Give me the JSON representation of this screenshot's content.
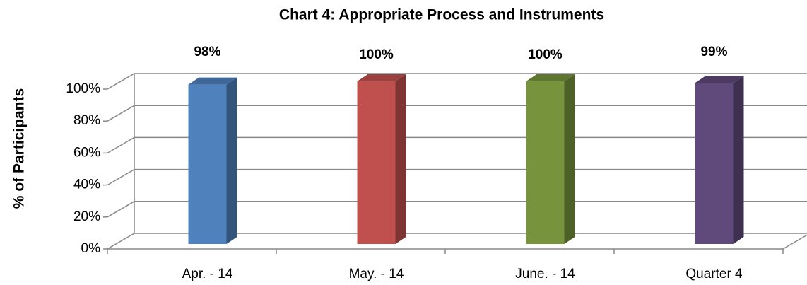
{
  "chart_data": {
    "type": "bar3d",
    "title": "Chart 4: Appropriate Process and Instruments",
    "y_axis_label": "% of Participants",
    "categories": [
      "Apr. - 14",
      "May. - 14",
      "June. - 14",
      "Quarter 4"
    ],
    "values": [
      98,
      100,
      100,
      99
    ],
    "value_labels": [
      "98%",
      "100%",
      "100%",
      "99%"
    ],
    "colors": [
      "#4f81bd",
      "#c0504d",
      "#77933c",
      "#604a7b"
    ],
    "ylim": [
      0,
      100
    ],
    "yticks": [
      {
        "value": 0,
        "label": "0%"
      },
      {
        "value": 20,
        "label": "20%"
      },
      {
        "value": 40,
        "label": "40%"
      },
      {
        "value": 60,
        "label": "60%"
      },
      {
        "value": 80,
        "label": "80%"
      },
      {
        "value": 100,
        "label": "100%"
      }
    ],
    "grid": true
  }
}
